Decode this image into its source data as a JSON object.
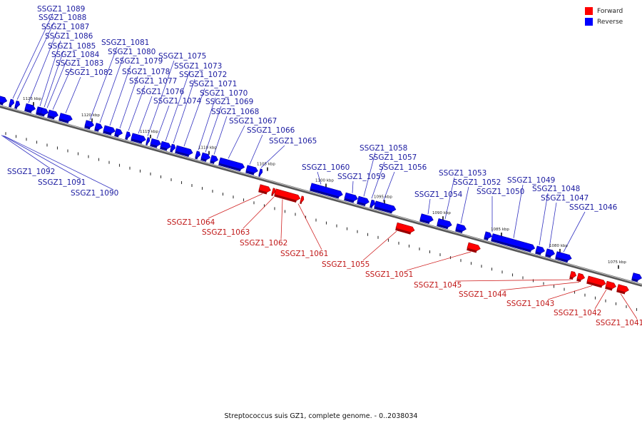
{
  "caption": "Streptococcus suis GZ1, complete genome. - 0..2038034",
  "legend": [
    {
      "label": "Forward",
      "color": "#ff0000"
    },
    {
      "label": "Reverse",
      "color": "#0000ff"
    }
  ],
  "colors": {
    "forward": "#ff0000",
    "reverse": "#0000ff",
    "forward_text": "#c01818",
    "reverse_text": "#1a1aa0"
  },
  "ticks": [
    {
      "kbp": 1125,
      "label": "1125 kbp"
    },
    {
      "kbp": 1120,
      "label": "1120 kbp"
    },
    {
      "kbp": 1115,
      "label": "1115 kbp"
    },
    {
      "kbp": 1110,
      "label": "1110 kbp"
    },
    {
      "kbp": 1105,
      "label": "1105 kbp"
    },
    {
      "kbp": 1100,
      "label": "1100 kbp"
    },
    {
      "kbp": 1095,
      "label": "1095 kbp"
    },
    {
      "kbp": 1090,
      "label": "1090 kbp"
    },
    {
      "kbp": 1085,
      "label": "1085 kbp"
    },
    {
      "kbp": 1080,
      "label": "1080 kbp"
    },
    {
      "kbp": 1075,
      "label": "1075 kbp"
    }
  ],
  "genes": [
    {
      "id": "SSGZ1_1092",
      "strand": "reverse"
    },
    {
      "id": "SSGZ1_1091",
      "strand": "reverse"
    },
    {
      "id": "SSGZ1_1090",
      "strand": "reverse"
    },
    {
      "id": "SSGZ1_1089",
      "strand": "reverse"
    },
    {
      "id": "SSGZ1_1088",
      "strand": "reverse"
    },
    {
      "id": "SSGZ1_1087",
      "strand": "reverse"
    },
    {
      "id": "SSGZ1_1086",
      "strand": "reverse"
    },
    {
      "id": "SSGZ1_1085",
      "strand": "reverse"
    },
    {
      "id": "SSGZ1_1084",
      "strand": "reverse"
    },
    {
      "id": "SSGZ1_1083",
      "strand": "reverse"
    },
    {
      "id": "SSGZ1_1082",
      "strand": "reverse"
    },
    {
      "id": "SSGZ1_1081",
      "strand": "reverse"
    },
    {
      "id": "SSGZ1_1080",
      "strand": "reverse"
    },
    {
      "id": "SSGZ1_1079",
      "strand": "reverse"
    },
    {
      "id": "SSGZ1_1078",
      "strand": "reverse"
    },
    {
      "id": "SSGZ1_1077",
      "strand": "reverse"
    },
    {
      "id": "SSGZ1_1076",
      "strand": "reverse"
    },
    {
      "id": "SSGZ1_1075",
      "strand": "reverse"
    },
    {
      "id": "SSGZ1_1074",
      "strand": "reverse"
    },
    {
      "id": "SSGZ1_1073",
      "strand": "reverse"
    },
    {
      "id": "SSGZ1_1072",
      "strand": "reverse"
    },
    {
      "id": "SSGZ1_1071",
      "strand": "reverse"
    },
    {
      "id": "SSGZ1_1070",
      "strand": "reverse"
    },
    {
      "id": "SSGZ1_1069",
      "strand": "reverse"
    },
    {
      "id": "SSGZ1_1068",
      "strand": "reverse"
    },
    {
      "id": "SSGZ1_1067",
      "strand": "reverse"
    },
    {
      "id": "SSGZ1_1066",
      "strand": "reverse"
    },
    {
      "id": "SSGZ1_1065",
      "strand": "reverse"
    },
    {
      "id": "SSGZ1_1064",
      "strand": "forward"
    },
    {
      "id": "SSGZ1_1063",
      "strand": "forward"
    },
    {
      "id": "SSGZ1_1062",
      "strand": "forward"
    },
    {
      "id": "SSGZ1_1061",
      "strand": "forward"
    },
    {
      "id": "SSGZ1_1060",
      "strand": "reverse"
    },
    {
      "id": "SSGZ1_1059",
      "strand": "reverse"
    },
    {
      "id": "SSGZ1_1058",
      "strand": "reverse"
    },
    {
      "id": "SSGZ1_1057",
      "strand": "reverse"
    },
    {
      "id": "SSGZ1_1056",
      "strand": "reverse"
    },
    {
      "id": "SSGZ1_1055",
      "strand": "forward"
    },
    {
      "id": "SSGZ1_1054",
      "strand": "reverse"
    },
    {
      "id": "SSGZ1_1053",
      "strand": "reverse"
    },
    {
      "id": "SSGZ1_1052",
      "strand": "reverse"
    },
    {
      "id": "SSGZ1_1051",
      "strand": "forward"
    },
    {
      "id": "SSGZ1_1050",
      "strand": "reverse"
    },
    {
      "id": "SSGZ1_1049",
      "strand": "reverse"
    },
    {
      "id": "SSGZ1_1048",
      "strand": "reverse"
    },
    {
      "id": "SSGZ1_1047",
      "strand": "reverse"
    },
    {
      "id": "SSGZ1_1046",
      "strand": "reverse"
    },
    {
      "id": "SSGZ1_1045",
      "strand": "forward"
    },
    {
      "id": "SSGZ1_1044",
      "strand": "forward"
    },
    {
      "id": "SSGZ1_1043",
      "strand": "forward"
    },
    {
      "id": "SSGZ1_1042",
      "strand": "forward"
    },
    {
      "id": "SSGZ1_1041",
      "strand": "forward"
    }
  ]
}
